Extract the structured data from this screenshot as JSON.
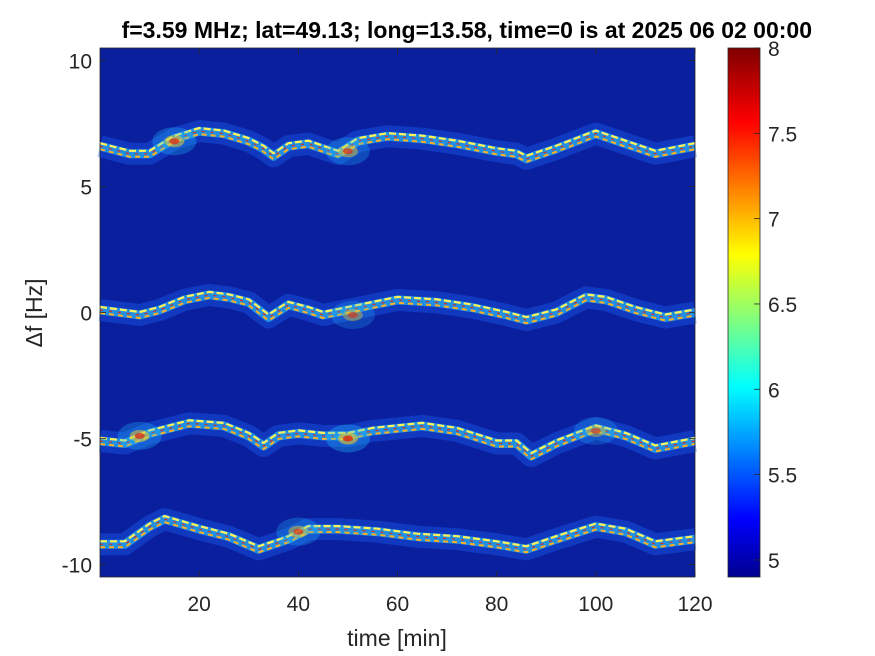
{
  "chart_data": {
    "type": "heatmap",
    "title": "f=3.59 MHz;  lat=49.13; long=13.58, time=0 is at 2025 06 02 00:00",
    "xlabel": "time [min]",
    "ylabel": "Δf [Hz]",
    "xlim": [
      0,
      120
    ],
    "ylim": [
      -10.5,
      10.5
    ],
    "x_ticks": [
      20,
      40,
      60,
      80,
      100,
      120
    ],
    "x_tick_labels": [
      "20",
      "40",
      "60",
      "80",
      "100",
      "120"
    ],
    "y_ticks": [
      10,
      5,
      0,
      -5,
      -10
    ],
    "y_tick_labels": [
      "10",
      "5",
      "0",
      "-5",
      "-10"
    ],
    "colorbar": {
      "colormap": "jet",
      "clim": [
        4.9,
        8.0
      ],
      "ticks": [
        8,
        7.5,
        7,
        6.5,
        6,
        5.5,
        5
      ],
      "tick_labels": [
        "8",
        "7.5",
        "7",
        "6.5",
        "6",
        "5.5",
        "5"
      ]
    },
    "background_color": "#0a1f9e",
    "traces": [
      {
        "name": "trace_top",
        "points": [
          [
            0,
            6.6
          ],
          [
            6,
            6.3
          ],
          [
            10,
            6.3
          ],
          [
            15,
            6.9
          ],
          [
            20,
            7.2
          ],
          [
            25,
            7.1
          ],
          [
            30,
            6.8
          ],
          [
            33,
            6.5
          ],
          [
            35,
            6.2
          ],
          [
            38,
            6.6
          ],
          [
            42,
            6.7
          ],
          [
            45,
            6.5
          ],
          [
            48,
            6.3
          ],
          [
            52,
            6.8
          ],
          [
            58,
            7.0
          ],
          [
            65,
            6.9
          ],
          [
            72,
            6.7
          ],
          [
            80,
            6.4
          ],
          [
            84,
            6.3
          ],
          [
            86,
            6.1
          ],
          [
            92,
            6.5
          ],
          [
            100,
            7.1
          ],
          [
            106,
            6.7
          ],
          [
            112,
            6.3
          ],
          [
            120,
            6.6
          ]
        ]
      },
      {
        "name": "trace_upper_mid",
        "points": [
          [
            0,
            0.1
          ],
          [
            8,
            -0.1
          ],
          [
            12,
            0.1
          ],
          [
            17,
            0.5
          ],
          [
            22,
            0.7
          ],
          [
            26,
            0.6
          ],
          [
            30,
            0.4
          ],
          [
            34,
            -0.2
          ],
          [
            38,
            0.3
          ],
          [
            42,
            0.1
          ],
          [
            45,
            -0.1
          ],
          [
            50,
            0.1
          ],
          [
            55,
            0.3
          ],
          [
            60,
            0.5
          ],
          [
            68,
            0.4
          ],
          [
            75,
            0.2
          ],
          [
            82,
            -0.1
          ],
          [
            86,
            -0.3
          ],
          [
            92,
            0.0
          ],
          [
            98,
            0.6
          ],
          [
            102,
            0.5
          ],
          [
            108,
            0.1
          ],
          [
            114,
            -0.2
          ],
          [
            120,
            0.0
          ]
        ]
      },
      {
        "name": "trace_lower_mid",
        "points": [
          [
            0,
            -5.1
          ],
          [
            5,
            -5.2
          ],
          [
            10,
            -4.8
          ],
          [
            18,
            -4.4
          ],
          [
            25,
            -4.5
          ],
          [
            30,
            -4.9
          ],
          [
            33,
            -5.3
          ],
          [
            36,
            -4.9
          ],
          [
            40,
            -4.8
          ],
          [
            45,
            -4.9
          ],
          [
            50,
            -4.9
          ],
          [
            55,
            -4.7
          ],
          [
            65,
            -4.5
          ],
          [
            72,
            -4.7
          ],
          [
            80,
            -5.2
          ],
          [
            84,
            -5.2
          ],
          [
            87,
            -5.7
          ],
          [
            92,
            -5.2
          ],
          [
            100,
            -4.6
          ],
          [
            106,
            -4.9
          ],
          [
            112,
            -5.4
          ],
          [
            120,
            -5.1
          ]
        ]
      },
      {
        "name": "trace_bottom",
        "points": [
          [
            0,
            -9.2
          ],
          [
            5,
            -9.2
          ],
          [
            10,
            -8.5
          ],
          [
            13,
            -8.2
          ],
          [
            20,
            -8.6
          ],
          [
            26,
            -8.9
          ],
          [
            32,
            -9.4
          ],
          [
            38,
            -9.0
          ],
          [
            42,
            -8.6
          ],
          [
            48,
            -8.6
          ],
          [
            56,
            -8.7
          ],
          [
            64,
            -8.9
          ],
          [
            72,
            -9.0
          ],
          [
            80,
            -9.2
          ],
          [
            86,
            -9.4
          ],
          [
            92,
            -9.0
          ],
          [
            100,
            -8.5
          ],
          [
            106,
            -8.7
          ],
          [
            112,
            -9.2
          ],
          [
            120,
            -9.0
          ]
        ]
      }
    ],
    "blobs": [
      {
        "x": 15,
        "y": 6.8,
        "strength": 0.9
      },
      {
        "x": 50,
        "y": 6.4,
        "strength": 0.8
      },
      {
        "x": 51,
        "y": -0.1,
        "strength": 0.7
      },
      {
        "x": 50,
        "y": -5.0,
        "strength": 1.0
      },
      {
        "x": 8,
        "y": -4.9,
        "strength": 0.9
      },
      {
        "x": 40,
        "y": -8.7,
        "strength": 0.8
      },
      {
        "x": 100,
        "y": -4.7,
        "strength": 0.7
      }
    ]
  }
}
